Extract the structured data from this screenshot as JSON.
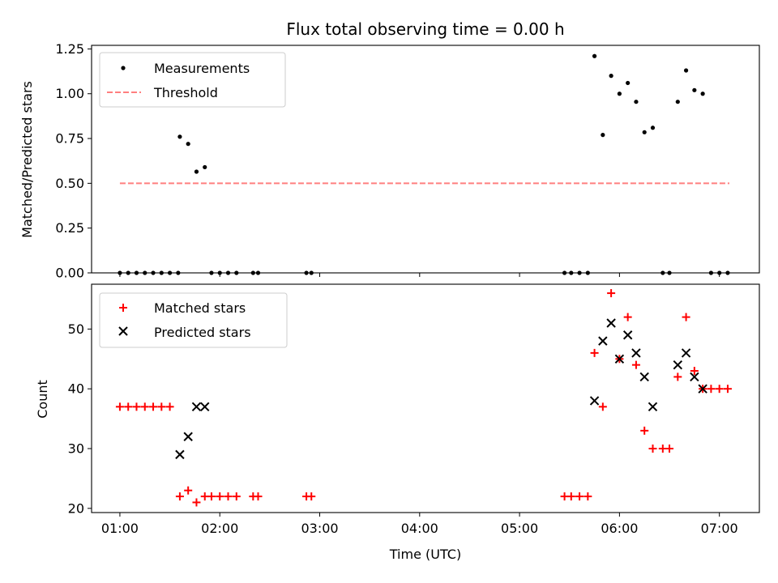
{
  "chart_data": [
    {
      "type": "scatter",
      "title": "Flux total observing time = 0.00 h",
      "xlabel": "",
      "ylabel": "Matched/Predicted stars",
      "xlim": [
        "00:43",
        "07:24"
      ],
      "ylim": [
        0,
        1.27
      ],
      "yticks": [
        "0.00",
        "0.25",
        "0.50",
        "0.75",
        "1.00",
        "1.25"
      ],
      "legend_position": "top-left",
      "series": [
        {
          "name": "Measurements",
          "marker": "dot",
          "color": "#000000",
          "points": [
            [
              "01:00",
              0
            ],
            [
              "01:05",
              0
            ],
            [
              "01:10",
              0
            ],
            [
              "01:15",
              0
            ],
            [
              "01:20",
              0
            ],
            [
              "01:25",
              0
            ],
            [
              "01:30",
              0
            ],
            [
              "01:35",
              0
            ],
            [
              "01:36",
              0.76
            ],
            [
              "01:41",
              0.72
            ],
            [
              "01:46",
              0.565
            ],
            [
              "01:51",
              0.59
            ],
            [
              "01:55",
              0
            ],
            [
              "02:00",
              0
            ],
            [
              "02:05",
              0
            ],
            [
              "02:10",
              0
            ],
            [
              "02:20",
              0
            ],
            [
              "02:23",
              0
            ],
            [
              "02:52",
              0
            ],
            [
              "02:55",
              0
            ],
            [
              "05:27",
              0
            ],
            [
              "05:31",
              0
            ],
            [
              "05:36",
              0
            ],
            [
              "05:41",
              0
            ],
            [
              "05:45",
              1.21
            ],
            [
              "05:50",
              0.77
            ],
            [
              "05:55",
              1.1
            ],
            [
              "06:00",
              1.0
            ],
            [
              "06:05",
              1.06
            ],
            [
              "06:10",
              0.955
            ],
            [
              "06:15",
              0.785
            ],
            [
              "06:20",
              0.81
            ],
            [
              "06:26",
              0
            ],
            [
              "06:30",
              0
            ],
            [
              "06:35",
              0.955
            ],
            [
              "06:40",
              1.13
            ],
            [
              "06:45",
              1.02
            ],
            [
              "06:50",
              1.0
            ],
            [
              "06:55",
              0
            ],
            [
              "07:00",
              0
            ],
            [
              "07:05",
              0
            ]
          ]
        },
        {
          "name": "Threshold",
          "type": "line",
          "style": "dashed",
          "color": "#ff7f7f",
          "points": [
            [
              "01:00",
              0.5
            ],
            [
              "07:06",
              0.5
            ]
          ]
        }
      ]
    },
    {
      "type": "scatter",
      "title": "",
      "xlabel": "Time (UTC)",
      "ylabel": "Count",
      "xlim": [
        "00:43",
        "07:24"
      ],
      "ylim": [
        19.3,
        57.5
      ],
      "xticks": [
        "01:00",
        "02:00",
        "03:00",
        "04:00",
        "05:00",
        "06:00",
        "07:00"
      ],
      "yticks": [
        "20",
        "30",
        "40",
        "50"
      ],
      "legend_position": "top-left",
      "series": [
        {
          "name": "Matched stars",
          "marker": "plus",
          "color": "#ff0000",
          "points": [
            [
              "01:00",
              37
            ],
            [
              "01:05",
              37
            ],
            [
              "01:10",
              37
            ],
            [
              "01:15",
              37
            ],
            [
              "01:20",
              37
            ],
            [
              "01:25",
              37
            ],
            [
              "01:30",
              37
            ],
            [
              "01:36",
              22
            ],
            [
              "01:41",
              23
            ],
            [
              "01:46",
              21
            ],
            [
              "01:51",
              22
            ],
            [
              "01:55",
              22
            ],
            [
              "02:00",
              22
            ],
            [
              "02:05",
              22
            ],
            [
              "02:10",
              22
            ],
            [
              "02:20",
              22
            ],
            [
              "02:23",
              22
            ],
            [
              "02:52",
              22
            ],
            [
              "02:55",
              22
            ],
            [
              "05:27",
              22
            ],
            [
              "05:31",
              22
            ],
            [
              "05:36",
              22
            ],
            [
              "05:41",
              22
            ],
            [
              "05:45",
              46
            ],
            [
              "05:50",
              37
            ],
            [
              "05:55",
              56
            ],
            [
              "06:00",
              45
            ],
            [
              "06:05",
              52
            ],
            [
              "06:10",
              44
            ],
            [
              "06:15",
              33
            ],
            [
              "06:20",
              30
            ],
            [
              "06:26",
              30
            ],
            [
              "06:30",
              30
            ],
            [
              "06:35",
              42
            ],
            [
              "06:40",
              52
            ],
            [
              "06:45",
              43
            ],
            [
              "06:50",
              40
            ],
            [
              "06:55",
              40
            ],
            [
              "07:00",
              40
            ],
            [
              "07:05",
              40
            ]
          ]
        },
        {
          "name": "Predicted stars",
          "marker": "x",
          "color": "#000000",
          "points": [
            [
              "01:36",
              29
            ],
            [
              "01:41",
              32
            ],
            [
              "01:46",
              37
            ],
            [
              "01:51",
              37
            ],
            [
              "05:45",
              38
            ],
            [
              "05:50",
              48
            ],
            [
              "05:55",
              51
            ],
            [
              "06:00",
              45
            ],
            [
              "06:05",
              49
            ],
            [
              "06:10",
              46
            ],
            [
              "06:15",
              42
            ],
            [
              "06:20",
              37
            ],
            [
              "06:35",
              44
            ],
            [
              "06:40",
              46
            ],
            [
              "06:45",
              42
            ],
            [
              "06:50",
              40
            ]
          ]
        }
      ]
    }
  ]
}
